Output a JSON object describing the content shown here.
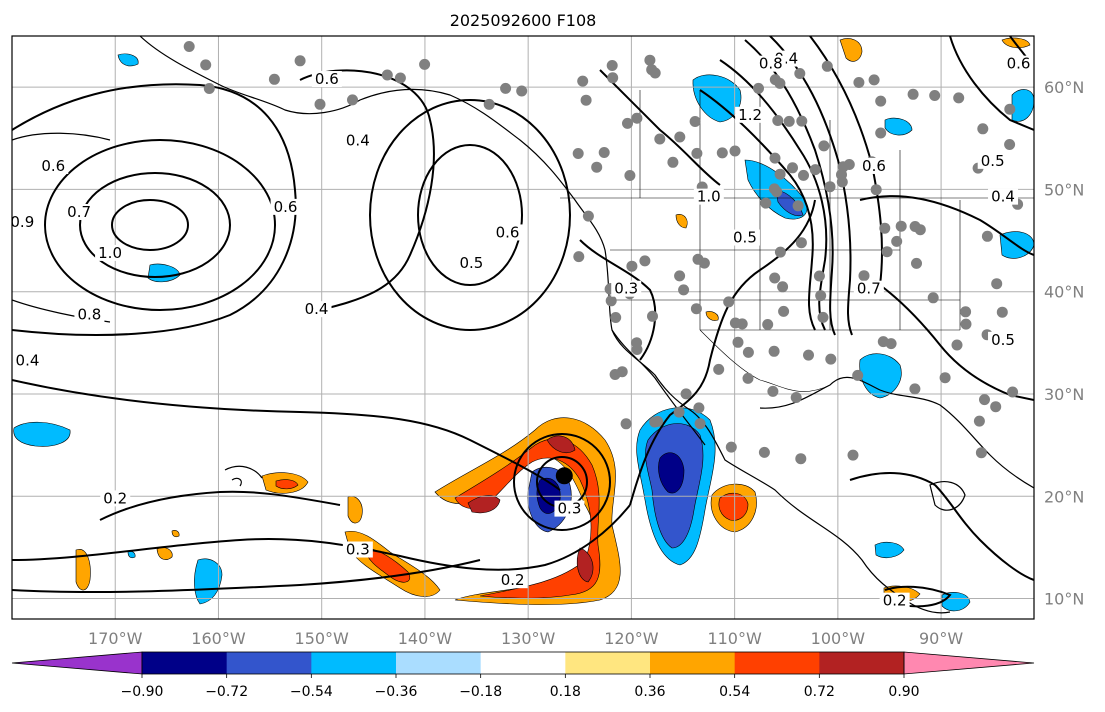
{
  "map": {
    "title": "2025092600 F108",
    "extent": {
      "lon_min": -180,
      "lon_max": -81,
      "lat_min": 8,
      "lat_max": 65
    },
    "gridlines": {
      "lons": [
        -170,
        -160,
        -150,
        -140,
        -130,
        -120,
        -110,
        -100,
        -90
      ],
      "lats": [
        10,
        20,
        30,
        40,
        50,
        60
      ]
    },
    "x_tick_labels": [
      "170°W",
      "160°W",
      "150°W",
      "140°W",
      "130°W",
      "120°W",
      "110°W",
      "100°W",
      "90°W"
    ],
    "y_tick_labels": [
      "60°N",
      "50°N",
      "40°N",
      "30°N",
      "20°N",
      "10°N"
    ],
    "contour_labels": [
      {
        "text": "0.6",
        "lon": -149.5,
        "lat": 60.5
      },
      {
        "text": "0.6",
        "lon": -176.0,
        "lat": 52.0
      },
      {
        "text": "0.7",
        "lon": -173.5,
        "lat": 47.5
      },
      {
        "text": "1.0",
        "lon": -170.5,
        "lat": 43.5
      },
      {
        "text": "0.8",
        "lon": -172.5,
        "lat": 37.5
      },
      {
        "text": "0.9",
        "lon": -179.0,
        "lat": 46.5
      },
      {
        "text": "0.4",
        "lon": -146.5,
        "lat": 54.5
      },
      {
        "text": "0.6",
        "lon": -153.5,
        "lat": 48.0
      },
      {
        "text": "0.4",
        "lon": -150.5,
        "lat": 38.0
      },
      {
        "text": "0.5",
        "lon": -135.5,
        "lat": 42.5
      },
      {
        "text": "0.6",
        "lon": -132.0,
        "lat": 45.5
      },
      {
        "text": "0.4",
        "lon": -178.5,
        "lat": 33.0
      },
      {
        "text": "0.3",
        "lon": -120.5,
        "lat": 40.0
      },
      {
        "text": "0.2",
        "lon": -170.0,
        "lat": 19.5
      },
      {
        "text": "0.3",
        "lon": -146.5,
        "lat": 14.5
      },
      {
        "text": "0.2",
        "lon": -131.5,
        "lat": 11.5
      },
      {
        "text": "0.2",
        "lon": -94.5,
        "lat": 9.5
      },
      {
        "text": "0.3",
        "lon": -126.0,
        "lat": 18.5
      },
      {
        "text": "0.5",
        "lon": -109.0,
        "lat": 45.0
      },
      {
        "text": "1.0",
        "lon": -112.5,
        "lat": 49.0
      },
      {
        "text": "0.6",
        "lon": -96.5,
        "lat": 52.0
      },
      {
        "text": "0.4",
        "lon": -105.0,
        "lat": 62.5
      },
      {
        "text": "0.8",
        "lon": -106.5,
        "lat": 62.0
      },
      {
        "text": "1.2",
        "lon": -108.5,
        "lat": 57.0
      },
      {
        "text": "0.5",
        "lon": -85.0,
        "lat": 52.5
      },
      {
        "text": "0.4",
        "lon": -84.0,
        "lat": 49.0
      },
      {
        "text": "0.6",
        "lon": -82.5,
        "lat": 62.0
      },
      {
        "text": "0.7",
        "lon": -97.0,
        "lat": 40.0
      },
      {
        "text": "0.5",
        "lon": -84.0,
        "lat": 35.0
      }
    ],
    "low_center": {
      "lon": -126.5,
      "lat": 22.0
    }
  },
  "colorbar": {
    "colors": [
      "#9933cc",
      "#000088",
      "#3355cc",
      "#00bbff",
      "#aaddff",
      "#ffffff",
      "#ffe680",
      "#ffa500",
      "#ff4000",
      "#b22222",
      "#ff88b0"
    ],
    "tick_labels": [
      "−0.90",
      "−0.72",
      "−0.54",
      "−0.36",
      "−0.18",
      "0.18",
      "0.36",
      "0.54",
      "0.72",
      "0.90"
    ]
  },
  "colors": {
    "land_dot": "#808080",
    "grid": "#b0b0b0",
    "contour": "#000000"
  }
}
